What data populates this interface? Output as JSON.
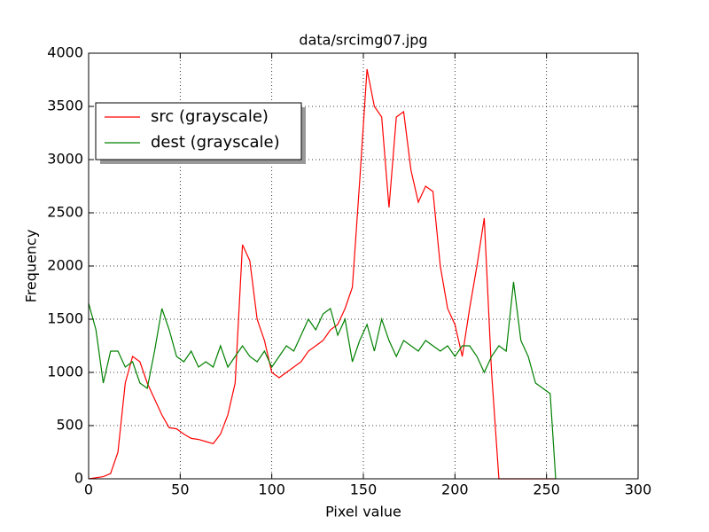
{
  "chart_data": {
    "type": "line",
    "title": "data/srcimg07.jpg",
    "x_label": "Pixel value",
    "y_label": "Frequency",
    "x": [
      0,
      4,
      8,
      12,
      16,
      20,
      24,
      28,
      32,
      36,
      40,
      44,
      48,
      52,
      56,
      60,
      64,
      68,
      72,
      76,
      80,
      84,
      88,
      92,
      96,
      100,
      104,
      108,
      112,
      116,
      120,
      124,
      128,
      132,
      136,
      140,
      144,
      148,
      152,
      156,
      160,
      164,
      168,
      172,
      176,
      180,
      184,
      188,
      192,
      196,
      200,
      204,
      208,
      212,
      216,
      220,
      224,
      228,
      232,
      236,
      240,
      244,
      248,
      252,
      255
    ],
    "series": [
      {
        "name": "src (grayscale)",
        "color": "#ff0000",
        "values": [
          0,
          10,
          20,
          50,
          250,
          900,
          1150,
          1100,
          900,
          750,
          600,
          480,
          470,
          420,
          380,
          370,
          350,
          330,
          420,
          600,
          900,
          2200,
          2050,
          1500,
          1300,
          1000,
          950,
          1000,
          1050,
          1100,
          1200,
          1250,
          1300,
          1400,
          1450,
          1600,
          1800,
          2800,
          3850,
          3500,
          3400,
          2550,
          3400,
          3450,
          2900,
          2600,
          2750,
          2700,
          2000,
          1600,
          1450,
          1150,
          1600,
          2000,
          2450,
          1000,
          0,
          0,
          0,
          0,
          0,
          0,
          0,
          0,
          0
        ]
      },
      {
        "name": "dest (grayscale)",
        "color": "#008000",
        "values": [
          1650,
          1400,
          900,
          1200,
          1200,
          1050,
          1100,
          900,
          850,
          1200,
          1600,
          1400,
          1150,
          1100,
          1200,
          1050,
          1100,
          1050,
          1250,
          1050,
          1150,
          1250,
          1150,
          1100,
          1200,
          1050,
          1150,
          1250,
          1200,
          1350,
          1500,
          1400,
          1550,
          1600,
          1350,
          1500,
          1100,
          1300,
          1450,
          1200,
          1500,
          1300,
          1150,
          1300,
          1250,
          1200,
          1300,
          1250,
          1200,
          1250,
          1150,
          1250,
          1250,
          1150,
          1000,
          1150,
          1250,
          1200,
          1850,
          1300,
          1150,
          900,
          850,
          800,
          0
        ]
      }
    ],
    "xlim": [
      0,
      300
    ],
    "ylim": [
      0,
      4000
    ],
    "xticks": [
      0,
      50,
      100,
      150,
      200,
      250,
      300
    ],
    "yticks": [
      0,
      500,
      1000,
      1500,
      2000,
      2500,
      3000,
      3500,
      4000
    ],
    "grid": true,
    "legend": "upper left"
  }
}
